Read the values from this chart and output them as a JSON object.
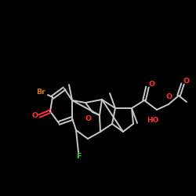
{
  "bg": "#000000",
  "bc": "#c8c8c8",
  "oc": "#ff3333",
  "brc": "#cc7722",
  "fc": "#44dd44",
  "hoc": "#ff3333"
}
